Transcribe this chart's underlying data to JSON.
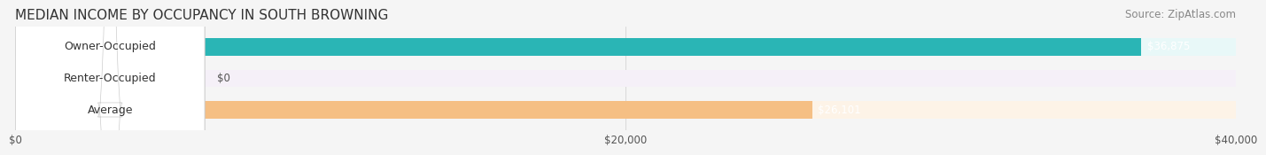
{
  "title": "MEDIAN INCOME BY OCCUPANCY IN SOUTH BROWNING",
  "source": "Source: ZipAtlas.com",
  "categories": [
    "Owner-Occupied",
    "Renter-Occupied",
    "Average"
  ],
  "values": [
    36875,
    0,
    26101
  ],
  "bar_colors": [
    "#2ab5b5",
    "#c9a8d4",
    "#f5bf84"
  ],
  "bar_bg_colors": [
    "#e8f8f8",
    "#f5f0f8",
    "#fdf3e7"
  ],
  "value_labels": [
    "$36,875",
    "$0",
    "$26,101"
  ],
  "xlim": [
    0,
    40000
  ],
  "xticks": [
    0,
    20000,
    40000
  ],
  "xtick_labels": [
    "$0",
    "$20,000",
    "$40,000"
  ],
  "label_fontsize": 9,
  "title_fontsize": 11,
  "source_fontsize": 8.5,
  "bar_height": 0.55,
  "background_color": "#f5f5f5"
}
